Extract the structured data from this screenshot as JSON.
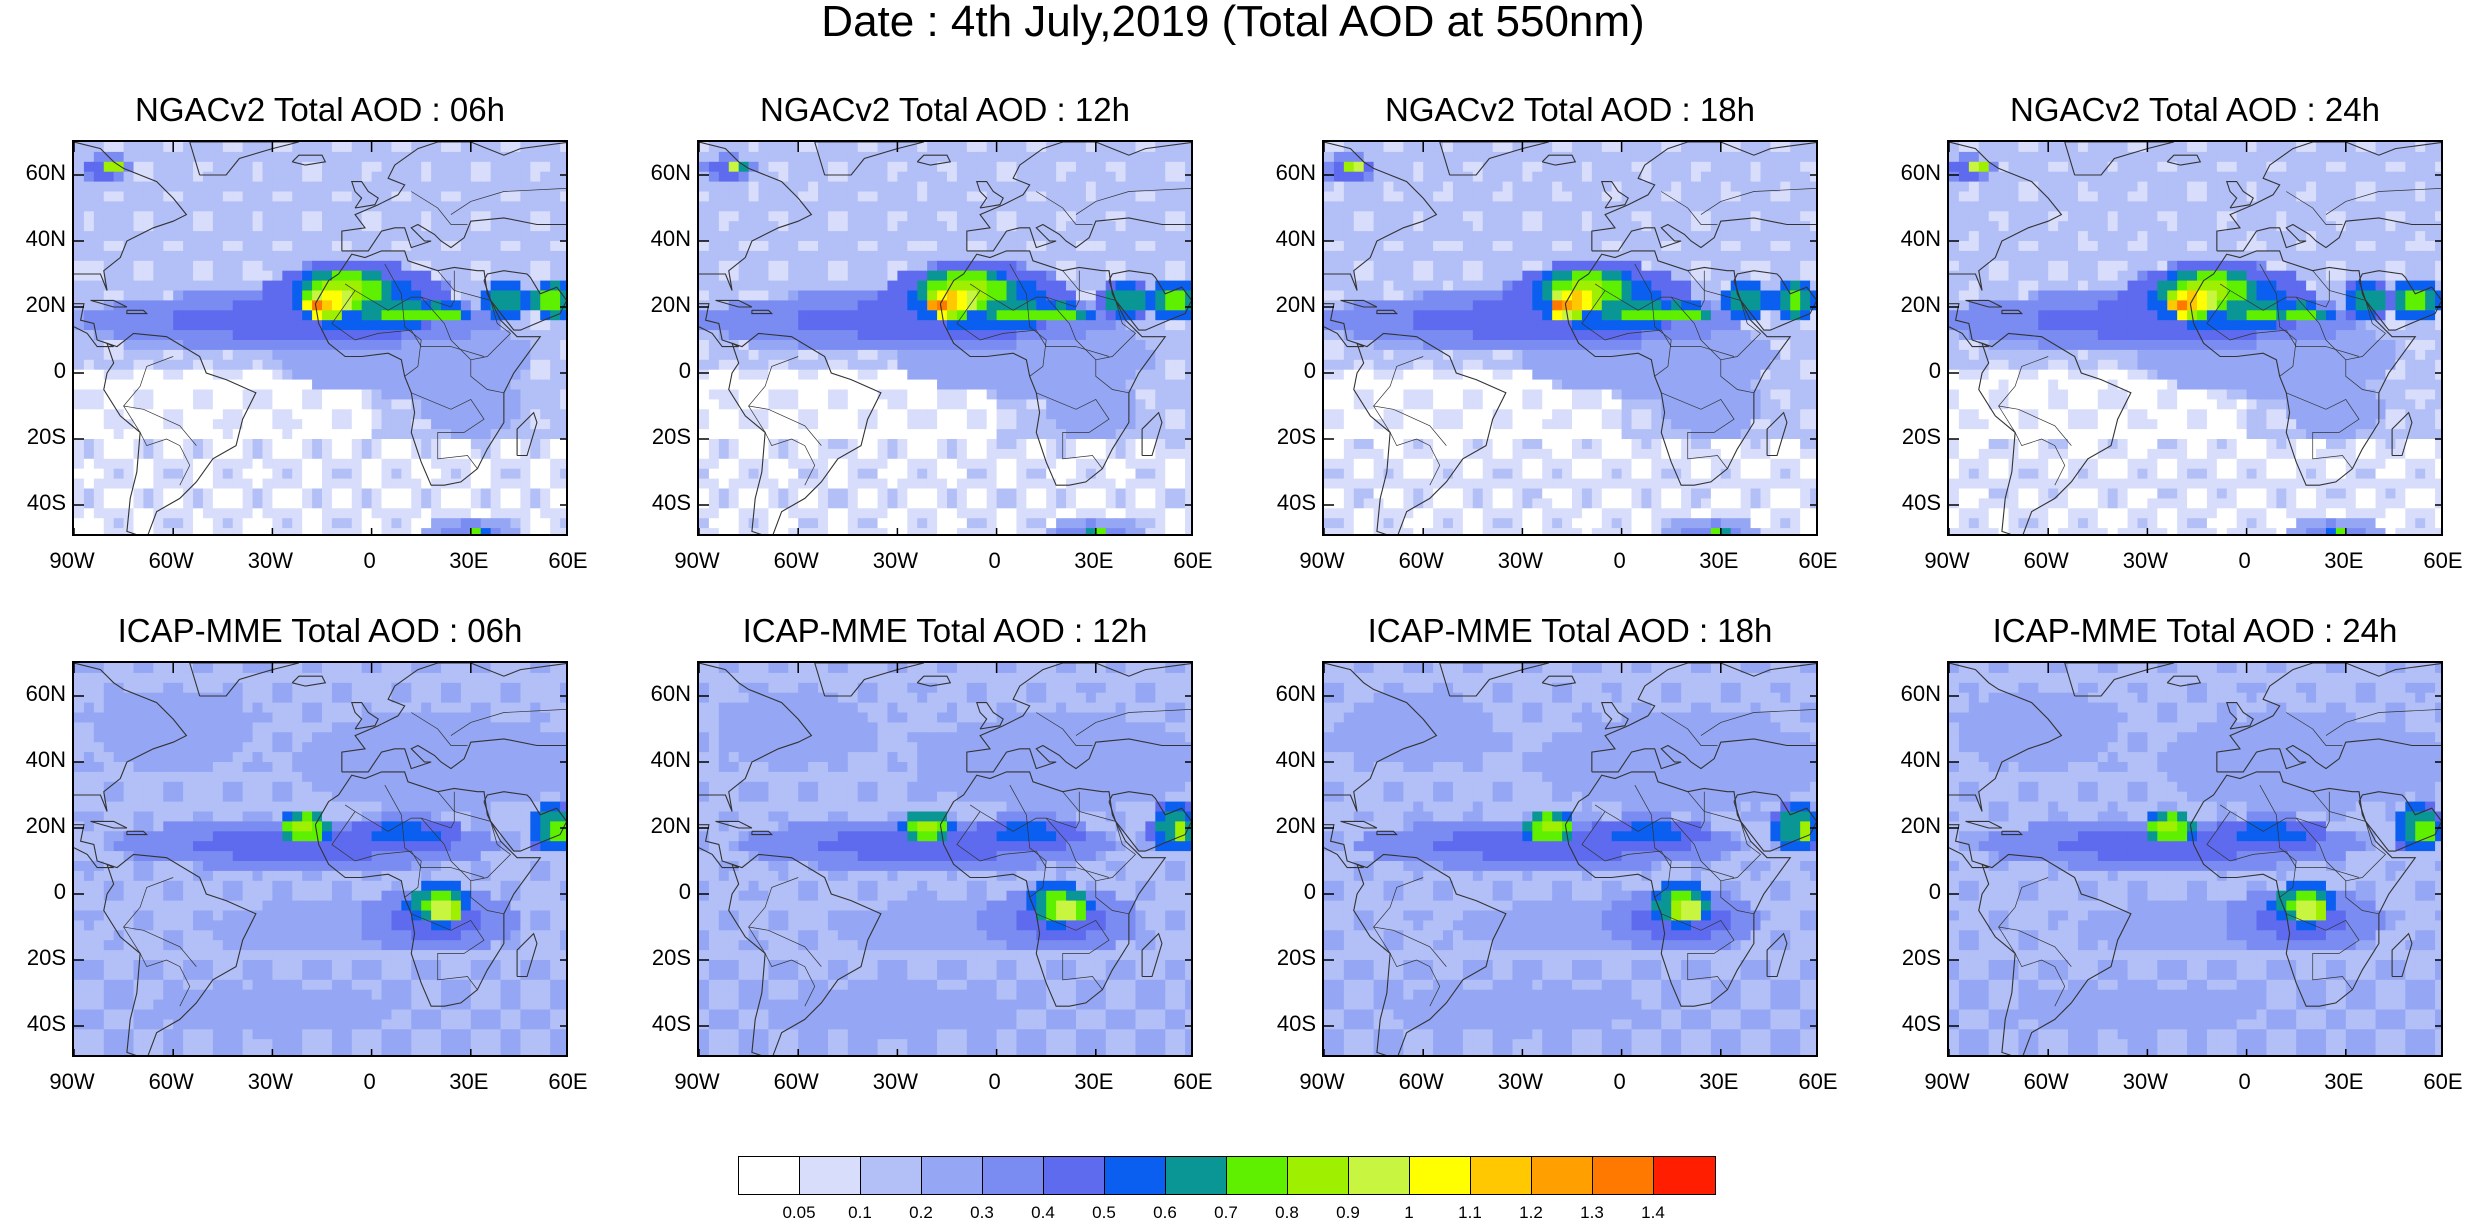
{
  "title": "Date : 4th July,2019 (Total AOD at 550nm)",
  "panels": [
    {
      "title": "NGACv2 Total AOD : 06h",
      "model": "ngac",
      "hour": 6
    },
    {
      "title": "NGACv2 Total AOD : 12h",
      "model": "ngac",
      "hour": 12
    },
    {
      "title": "NGACv2 Total AOD : 18h",
      "model": "ngac",
      "hour": 18
    },
    {
      "title": "NGACv2 Total AOD : 24h",
      "model": "ngac",
      "hour": 24
    },
    {
      "title": "ICAP-MME Total AOD : 06h",
      "model": "icap",
      "hour": 6
    },
    {
      "title": "ICAP-MME Total AOD : 12h",
      "model": "icap",
      "hour": 12
    },
    {
      "title": "ICAP-MME Total AOD : 18h",
      "model": "icap",
      "hour": 18
    },
    {
      "title": "ICAP-MME Total AOD : 24h",
      "model": "icap",
      "hour": 24
    }
  ],
  "lat_labels": [
    "60N",
    "40N",
    "20N",
    "0",
    "20S",
    "40S"
  ],
  "lon_labels": [
    "90W",
    "60W",
    "30W",
    "0",
    "30E",
    "60E"
  ],
  "colorbar": {
    "colors": [
      "#ffffff",
      "#d7ddfb",
      "#b3bff7",
      "#94a6f4",
      "#7a8cf1",
      "#5f6bee",
      "#0a5ff0",
      "#0b9696",
      "#5ff000",
      "#9ef000",
      "#c8f540",
      "#ffff00",
      "#ffc800",
      "#ffa000",
      "#ff7800",
      "#ff1e00"
    ],
    "labels": [
      "0.05",
      "0.1",
      "0.2",
      "0.3",
      "0.4",
      "0.5",
      "0.6",
      "0.7",
      "0.8",
      "0.9",
      "1",
      "1.1",
      "1.2",
      "1.3",
      "1.4"
    ]
  }
}
